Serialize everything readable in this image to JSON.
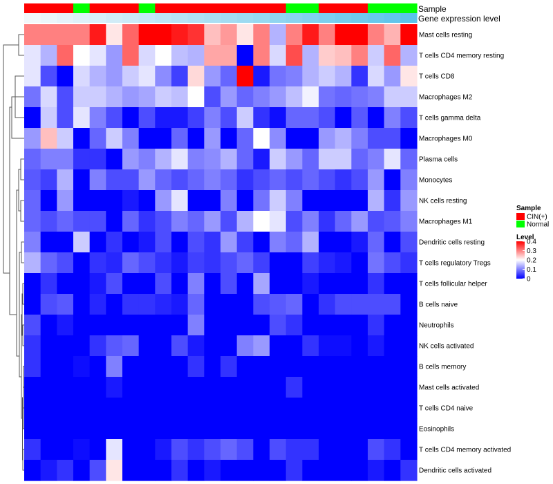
{
  "chart_data": {
    "type": "heatmap",
    "title": "",
    "annotation_rows": [
      "Sample",
      "Gene expression level"
    ],
    "rows": [
      "Mast cells resting",
      "T cells CD4 memory resting",
      "T cells CD8",
      "Macrophages M2",
      "T cells gamma delta",
      "Macrophages M0",
      "Plasma cells",
      "Monocytes",
      "NK cells resting",
      "Macrophages M1",
      "Dendritic cells resting",
      "T cells regulatory  Tregs",
      "T cells follicular helper",
      "B cells naive",
      "Neutrophils",
      "NK cells activated",
      "B cells memory",
      "Mast cells activated",
      "T cells CD4 naive",
      "Eosinophils",
      "T cells CD4 memory activated",
      "Dendritic cells activated"
    ],
    "sample_groups": [
      "CIN(+)",
      "CIN(+)",
      "CIN(+)",
      "Normal",
      "CIN(+)",
      "CIN(+)",
      "CIN(+)",
      "Normal",
      "CIN(+)",
      "CIN(+)",
      "CIN(+)",
      "CIN(+)",
      "CIN(+)",
      "CIN(+)",
      "CIN(+)",
      "CIN(+)",
      "Normal",
      "Normal",
      "CIN(+)",
      "CIN(+)",
      "CIN(+)",
      "Normal",
      "Normal",
      "Normal"
    ],
    "gene_expression_level": [
      0.02,
      0.04,
      0.06,
      0.08,
      0.1,
      0.12,
      0.14,
      0.16,
      0.18,
      0.2,
      0.22,
      0.24,
      0.26,
      0.28,
      0.3,
      0.32,
      0.34,
      0.36,
      0.38,
      0.4,
      0.42,
      0.44,
      0.46,
      0.48
    ],
    "values": [
      [
        0.3,
        0.3,
        0.3,
        0.3,
        0.38,
        0.22,
        0.32,
        0.4,
        0.4,
        0.38,
        0.36,
        0.25,
        0.28,
        0.22,
        0.3,
        0.14,
        0.3,
        0.38,
        0.3,
        0.4,
        0.4,
        0.3,
        0.26,
        0.4
      ],
      [
        0.18,
        0.14,
        0.32,
        0.2,
        0.18,
        0.12,
        0.32,
        0.17,
        0.2,
        0.15,
        0.14,
        0.27,
        0.27,
        0.0,
        0.3,
        0.17,
        0.34,
        0.14,
        0.24,
        0.25,
        0.3,
        0.16,
        0.32,
        0.14
      ],
      [
        0.18,
        0.06,
        0.0,
        0.17,
        0.14,
        0.12,
        0.16,
        0.18,
        0.11,
        0.05,
        0.23,
        0.12,
        0.08,
        0.4,
        0.02,
        0.09,
        0.1,
        0.14,
        0.16,
        0.14,
        0.04,
        0.17,
        0.12,
        0.22
      ],
      [
        0.09,
        0.17,
        0.06,
        0.16,
        0.16,
        0.14,
        0.12,
        0.13,
        0.16,
        0.15,
        0.2,
        0.06,
        0.12,
        0.08,
        0.1,
        0.12,
        0.15,
        0.19,
        0.09,
        0.08,
        0.09,
        0.1,
        0.16,
        0.16
      ],
      [
        0.0,
        0.16,
        0.06,
        0.18,
        0.1,
        0.06,
        0.0,
        0.06,
        0.02,
        0.02,
        0.05,
        0.1,
        0.06,
        0.16,
        0.04,
        0.01,
        0.08,
        0.08,
        0.06,
        0.0,
        0.07,
        0.0,
        0.1,
        0.06
      ],
      [
        0.12,
        0.25,
        0.16,
        0.0,
        0.08,
        0.16,
        0.1,
        0.0,
        0.0,
        0.08,
        0.0,
        0.12,
        0.0,
        0.08,
        0.2,
        0.11,
        0.0,
        0.0,
        0.12,
        0.14,
        0.1,
        0.06,
        0.06,
        0.0
      ],
      [
        0.08,
        0.1,
        0.1,
        0.04,
        0.04,
        0.0,
        0.12,
        0.1,
        0.14,
        0.18,
        0.1,
        0.11,
        0.14,
        0.08,
        0.02,
        0.16,
        0.12,
        0.08,
        0.16,
        0.16,
        0.08,
        0.1,
        0.18,
        0.08
      ],
      [
        0.07,
        0.05,
        0.14,
        0.0,
        0.1,
        0.06,
        0.06,
        0.12,
        0.08,
        0.06,
        0.08,
        0.1,
        0.08,
        0.04,
        0.06,
        0.08,
        0.06,
        0.08,
        0.06,
        0.04,
        0.06,
        0.12,
        0.0,
        0.1
      ],
      [
        0.08,
        0.0,
        0.12,
        0.0,
        0.0,
        0.0,
        0.02,
        0.0,
        0.12,
        0.18,
        0.0,
        0.0,
        0.1,
        0.0,
        0.09,
        0.16,
        0.1,
        0.0,
        0.0,
        0.0,
        0.0,
        0.14,
        0.04,
        0.12
      ],
      [
        0.08,
        0.06,
        0.08,
        0.06,
        0.06,
        0.0,
        0.08,
        0.04,
        0.06,
        0.1,
        0.08,
        0.12,
        0.06,
        0.14,
        0.2,
        0.18,
        0.06,
        0.1,
        0.04,
        0.08,
        0.12,
        0.06,
        0.07,
        0.1
      ],
      [
        0.1,
        0.0,
        0.0,
        0.16,
        0.0,
        0.04,
        0.0,
        0.02,
        0.06,
        0.0,
        0.06,
        0.04,
        0.12,
        0.05,
        0.0,
        0.1,
        0.08,
        0.14,
        0.0,
        0.0,
        0.02,
        0.08,
        0.0,
        0.06
      ],
      [
        0.14,
        0.08,
        0.06,
        0.0,
        0.04,
        0.03,
        0.08,
        0.06,
        0.04,
        0.02,
        0.05,
        0.04,
        0.06,
        0.08,
        0.05,
        0.0,
        0.0,
        0.05,
        0.03,
        0.02,
        0.0,
        0.09,
        0.06,
        0.04
      ],
      [
        0.0,
        0.04,
        0.0,
        0.0,
        0.02,
        0.06,
        0.0,
        0.0,
        0.06,
        0.0,
        0.1,
        0.0,
        0.06,
        0.0,
        0.13,
        0.0,
        0.0,
        0.02,
        0.0,
        0.0,
        0.0,
        0.04,
        0.0,
        0.0
      ],
      [
        0.0,
        0.06,
        0.07,
        0.0,
        0.03,
        0.0,
        0.04,
        0.04,
        0.03,
        0.02,
        0.08,
        0.0,
        0.0,
        0.0,
        0.06,
        0.07,
        0.08,
        0.0,
        0.04,
        0.06,
        0.06,
        0.06,
        0.06,
        0.0
      ],
      [
        0.06,
        0.0,
        0.02,
        0.0,
        0.0,
        0.0,
        0.0,
        0.0,
        0.0,
        0.0,
        0.1,
        0.0,
        0.0,
        0.0,
        0.0,
        0.06,
        0.04,
        0.0,
        0.0,
        0.0,
        0.0,
        0.04,
        0.0,
        0.0
      ],
      [
        0.04,
        0.0,
        0.0,
        0.0,
        0.04,
        0.07,
        0.08,
        0.0,
        0.0,
        0.06,
        0.02,
        0.0,
        0.0,
        0.1,
        0.12,
        0.0,
        0.0,
        0.04,
        0.01,
        0.01,
        0.0,
        0.02,
        0.0,
        0.0
      ],
      [
        0.04,
        0.0,
        0.0,
        0.01,
        0.0,
        0.1,
        0.0,
        0.0,
        0.0,
        0.0,
        0.04,
        0.0,
        0.04,
        0.0,
        0.0,
        0.0,
        0.0,
        0.0,
        0.0,
        0.0,
        0.0,
        0.0,
        0.0,
        0.0
      ],
      [
        0.0,
        0.0,
        0.0,
        0.0,
        0.0,
        0.02,
        0.0,
        0.0,
        0.0,
        0.0,
        0.0,
        0.0,
        0.0,
        0.0,
        0.0,
        0.0,
        0.04,
        0.0,
        0.0,
        0.0,
        0.0,
        0.0,
        0.0,
        0.0
      ],
      [
        0.0,
        0.0,
        0.0,
        0.0,
        0.0,
        0.0,
        0.0,
        0.0,
        0.0,
        0.0,
        0.0,
        0.0,
        0.0,
        0.0,
        0.0,
        0.0,
        0.0,
        0.0,
        0.0,
        0.0,
        0.0,
        0.0,
        0.0,
        0.0
      ],
      [
        0.0,
        0.0,
        0.0,
        0.0,
        0.0,
        0.0,
        0.0,
        0.0,
        0.0,
        0.0,
        0.0,
        0.0,
        0.0,
        0.0,
        0.0,
        0.0,
        0.0,
        0.0,
        0.0,
        0.0,
        0.0,
        0.0,
        0.0,
        0.0
      ],
      [
        0.04,
        0.0,
        0.0,
        0.01,
        0.0,
        0.18,
        0.0,
        0.0,
        0.02,
        0.06,
        0.04,
        0.06,
        0.08,
        0.06,
        0.0,
        0.06,
        0.04,
        0.04,
        0.0,
        0.0,
        0.0,
        0.06,
        0.04,
        0.0
      ],
      [
        0.0,
        0.02,
        0.04,
        0.0,
        0.06,
        0.22,
        0.0,
        0.0,
        0.0,
        0.04,
        0.0,
        0.02,
        0.0,
        0.0,
        0.0,
        0.0,
        0.04,
        0.0,
        0.0,
        0.0,
        0.0,
        0.02,
        0.0,
        0.04
      ]
    ],
    "legend": {
      "sample": {
        "title": "Sample",
        "entries": [
          {
            "label": "CIN(+)",
            "color": "#ff0000"
          },
          {
            "label": "Normal",
            "color": "#00ff00"
          }
        ]
      },
      "level": {
        "title": "Level",
        "ticks": [
          {
            "label": "0.4",
            "value": 0.4
          },
          {
            "label": "0.3",
            "value": 0.3
          },
          {
            "label": "0.2",
            "value": 0.2
          },
          {
            "label": "0.1",
            "value": 0.1
          },
          {
            "label": "0",
            "value": 0.0
          }
        ]
      }
    },
    "color_scale": {
      "low": "#0000ff",
      "mid": "#ffffff",
      "high": "#ff0000",
      "min": 0,
      "max": 0.4
    },
    "gene_level_colors": {
      "low": "#f2f8fb",
      "high": "#5bc3ea"
    }
  }
}
